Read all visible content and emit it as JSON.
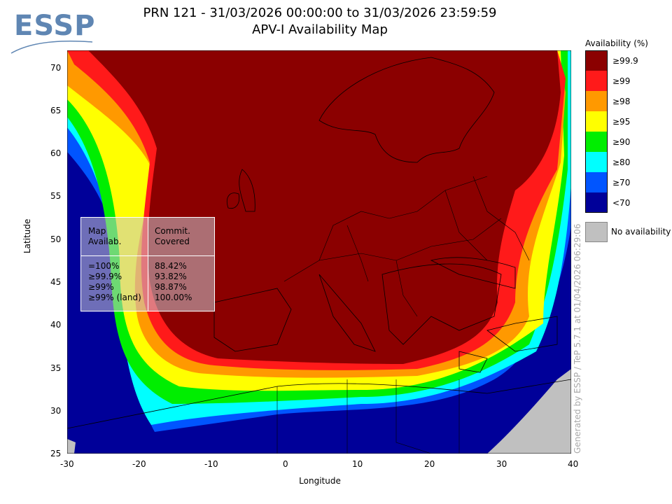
{
  "logo": {
    "text": "ESSP"
  },
  "title": {
    "line1": "PRN 121 - 31/03/2026 00:00:00 to 31/03/2026 23:59:59",
    "line2": "APV-I Availability Map"
  },
  "axes": {
    "xlabel": "Longitude",
    "ylabel": "Latitude",
    "xticks": [
      "-30",
      "-20",
      "-10",
      "0",
      "10",
      "20",
      "30",
      "40"
    ],
    "yticks": [
      "70",
      "65",
      "60",
      "55",
      "50",
      "45",
      "40",
      "35",
      "30",
      "25"
    ]
  },
  "legend": {
    "title": "Availability (%)",
    "items": [
      {
        "label": "≥99.9",
        "color": "#8b0000"
      },
      {
        "label": "≥99",
        "color": "#ff1a1a"
      },
      {
        "label": "≥98",
        "color": "#ff9900"
      },
      {
        "label": "≥95",
        "color": "#ffff00"
      },
      {
        "label": "≥90",
        "color": "#00ee00"
      },
      {
        "label": "≥80",
        "color": "#00ffff"
      },
      {
        "label": "≥70",
        "color": "#0055ff"
      },
      {
        "label": "<70",
        "color": "#000099"
      }
    ],
    "no_availability": {
      "label": "No availability",
      "color": "#c0c0c0"
    }
  },
  "stats": {
    "header1": [
      "Map",
      "Availab."
    ],
    "header2": [
      "Commit.",
      "Covered"
    ],
    "rows": [
      {
        "level": "=100%",
        "value": "88.42%"
      },
      {
        "level": "≥99.9%",
        "value": "93.82%"
      },
      {
        "level": "≥99%",
        "value": "98.87%"
      },
      {
        "level": "≥99% (land)",
        "value": "100.00%"
      }
    ]
  },
  "credit": "Generated by ESSP / TeP 5.7.1 at 01/04/2026 06:29:06",
  "map_extent": {
    "lon": [
      -30,
      40
    ],
    "lat": [
      25,
      72
    ]
  }
}
